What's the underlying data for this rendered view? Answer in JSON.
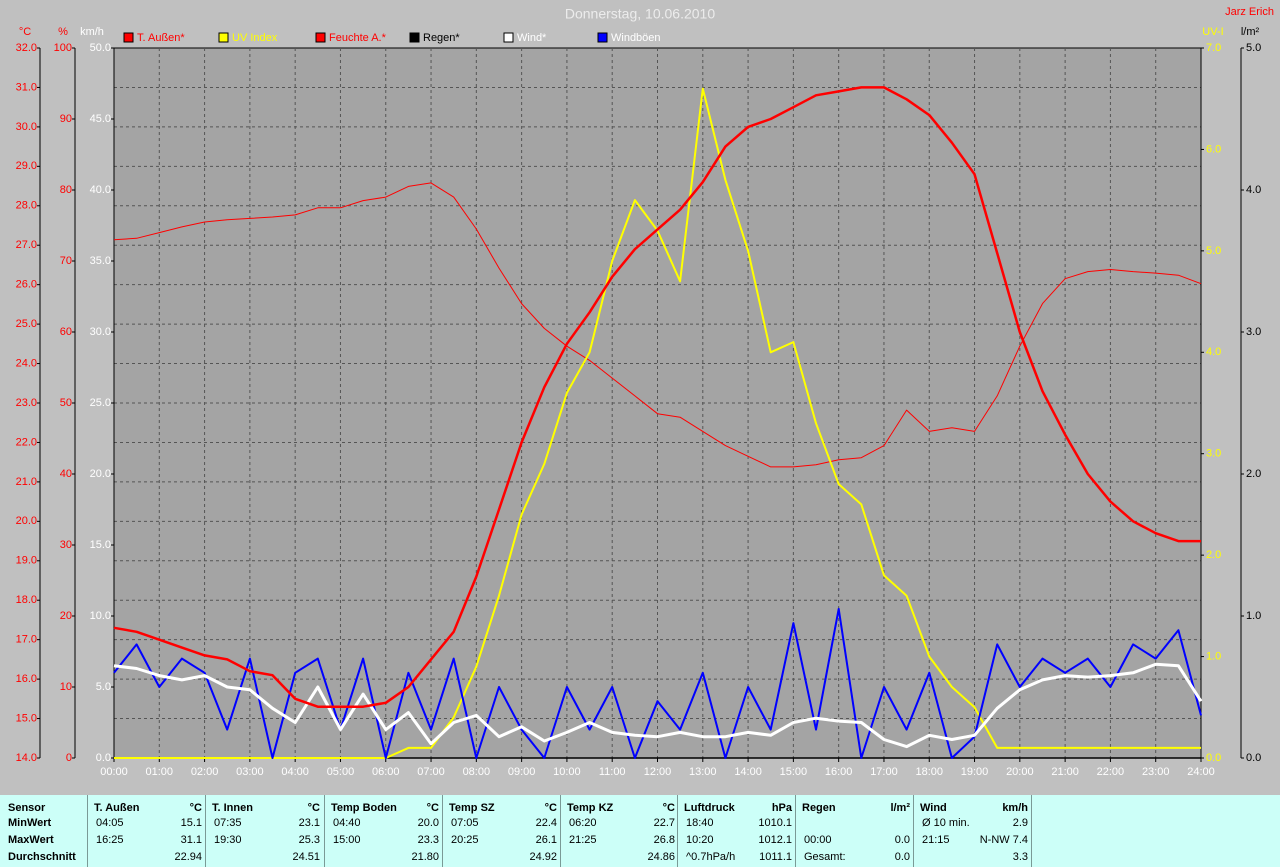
{
  "chart_data": {
    "type": "line",
    "title": "Donnerstag, 10.06.2010",
    "author": "Jarz Erich",
    "xlim": [
      0,
      24
    ],
    "xticks": [
      {
        "value": 0,
        "label": "00:00"
      },
      {
        "value": 1,
        "label": "01:00"
      },
      {
        "value": 2,
        "label": "02:00"
      },
      {
        "value": 3,
        "label": "03:00"
      },
      {
        "value": 4,
        "label": "04:00"
      },
      {
        "value": 5,
        "label": "05:00"
      },
      {
        "value": 6,
        "label": "06:00"
      },
      {
        "value": 7,
        "label": "07:00"
      },
      {
        "value": 8,
        "label": "08:00"
      },
      {
        "value": 9,
        "label": "09:00"
      },
      {
        "value": 10,
        "label": "10:00"
      },
      {
        "value": 11,
        "label": "11:00"
      },
      {
        "value": 12,
        "label": "12:00"
      },
      {
        "value": 13,
        "label": "13:00"
      },
      {
        "value": 14,
        "label": "14:00"
      },
      {
        "value": 15,
        "label": "15:00"
      },
      {
        "value": 16,
        "label": "16:00"
      },
      {
        "value": 17,
        "label": "17:00"
      },
      {
        "value": 18,
        "label": "18:00"
      },
      {
        "value": 19,
        "label": "19:00"
      },
      {
        "value": 20,
        "label": "20:00"
      },
      {
        "value": 21,
        "label": "21:00"
      },
      {
        "value": 22,
        "label": "22:00"
      },
      {
        "value": 23,
        "label": "23:00"
      },
      {
        "value": 24,
        "label": "24:00"
      }
    ],
    "grid": true,
    "axes": [
      {
        "unit": "°C",
        "color": "#ff0000",
        "lim": [
          14,
          32
        ],
        "ticks": [
          {
            "value": 14,
            "label": "14.0"
          },
          {
            "value": 15,
            "label": "15.0"
          },
          {
            "value": 16,
            "label": "16.0"
          },
          {
            "value": 17,
            "label": "17.0"
          },
          {
            "value": 18,
            "label": "18.0"
          },
          {
            "value": 19,
            "label": "19.0"
          },
          {
            "value": 20,
            "label": "20.0"
          },
          {
            "value": 21,
            "label": "21.0"
          },
          {
            "value": 22,
            "label": "22.0"
          },
          {
            "value": 23,
            "label": "23.0"
          },
          {
            "value": 24,
            "label": "24.0"
          },
          {
            "value": 25,
            "label": "25.0"
          },
          {
            "value": 26,
            "label": "26.0"
          },
          {
            "value": 27,
            "label": "27.0"
          },
          {
            "value": 28,
            "label": "28.0"
          },
          {
            "value": 29,
            "label": "29.0"
          },
          {
            "value": 30,
            "label": "30.0"
          },
          {
            "value": 31,
            "label": "31.0"
          },
          {
            "value": 32,
            "label": "32.0"
          }
        ]
      },
      {
        "unit": "%",
        "color": "#ff0000",
        "lim": [
          0,
          100
        ],
        "ticks": [
          0,
          10,
          20,
          30,
          40,
          50,
          60,
          70,
          80,
          90,
          100
        ]
      },
      {
        "unit": "km/h",
        "color": "#ffffff",
        "lim": [
          0,
          50
        ],
        "ticks": [
          {
            "value": 0,
            "label": "0.0"
          },
          {
            "value": 5,
            "label": "5.0"
          },
          {
            "value": 10,
            "label": "10.0"
          },
          {
            "value": 15,
            "label": "15.0"
          },
          {
            "value": 20,
            "label": "20.0"
          },
          {
            "value": 25,
            "label": "25.0"
          },
          {
            "value": 30,
            "label": "30.0"
          },
          {
            "value": 35,
            "label": "35.0"
          },
          {
            "value": 40,
            "label": "40.0"
          },
          {
            "value": 45,
            "label": "45.0"
          },
          {
            "value": 50,
            "label": "50.0"
          }
        ]
      },
      {
        "unit": "UV-I",
        "color": "#ffff00",
        "lim": [
          0,
          7
        ],
        "ticks": [
          {
            "value": 0,
            "label": "0.0"
          },
          {
            "value": 1,
            "label": "1.0"
          },
          {
            "value": 2,
            "label": "2.0"
          },
          {
            "value": 3,
            "label": "3.0"
          },
          {
            "value": 4,
            "label": "4.0"
          },
          {
            "value": 5,
            "label": "5.0"
          },
          {
            "value": 6,
            "label": "6.0"
          },
          {
            "value": 7,
            "label": "7.0"
          }
        ]
      },
      {
        "unit": "l/m²",
        "color": "#000000",
        "lim": [
          0,
          5
        ],
        "ticks": [
          {
            "value": 0,
            "label": "0.0"
          },
          {
            "value": 1,
            "label": "1.0"
          },
          {
            "value": 2,
            "label": "2.0"
          },
          {
            "value": 3,
            "label": "3.0"
          },
          {
            "value": 4,
            "label": "4.0"
          },
          {
            "value": 5,
            "label": "5.0"
          }
        ]
      }
    ],
    "x": [
      0,
      0.5,
      1,
      1.5,
      2,
      2.5,
      3,
      3.5,
      4,
      4.5,
      5,
      5.5,
      6,
      6.5,
      7,
      7.5,
      8,
      8.5,
      9,
      9.5,
      10,
      10.5,
      11,
      11.5,
      12,
      12.5,
      13,
      13.5,
      14,
      14.5,
      15,
      15.5,
      16,
      16.5,
      17,
      17.5,
      18,
      18.5,
      19,
      19.5,
      20,
      20.5,
      21,
      21.5,
      22,
      22.5,
      23,
      23.5,
      24
    ],
    "series": [
      {
        "name": "T. Außen*",
        "color": "#ff0000",
        "axis": 0,
        "values": [
          17.3,
          17.2,
          17.0,
          16.8,
          16.6,
          16.5,
          16.2,
          16.1,
          15.5,
          15.3,
          15.3,
          15.3,
          15.4,
          15.8,
          16.5,
          17.2,
          18.6,
          20.3,
          22.0,
          23.4,
          24.5,
          25.3,
          26.2,
          26.9,
          27.4,
          27.9,
          28.6,
          29.5,
          30.0,
          30.2,
          30.5,
          30.8,
          30.9,
          31.0,
          31.0,
          30.7,
          30.3,
          29.6,
          28.8,
          26.8,
          24.8,
          23.3,
          22.2,
          21.2,
          20.5,
          20.0,
          19.7,
          19.5,
          19.5
        ]
      },
      {
        "name": "UV Index",
        "color": "#ffff00",
        "axis": 3,
        "values": [
          0,
          0,
          0,
          0,
          0,
          0,
          0,
          0,
          0,
          0,
          0,
          0,
          0,
          0.1,
          0.1,
          0.4,
          0.9,
          1.6,
          2.4,
          2.9,
          3.6,
          4.0,
          4.9,
          5.5,
          5.2,
          4.7,
          6.6,
          5.7,
          5.0,
          4.0,
          4.1,
          3.3,
          2.7,
          2.5,
          1.8,
          1.6,
          1.0,
          0.7,
          0.5,
          0.1,
          0.1,
          0.1,
          0.1,
          0.1,
          0.1,
          0.1,
          0.1,
          0.1,
          0.1
        ]
      },
      {
        "name": "Feuchte A.*",
        "color": "#ff0000",
        "axis": 1,
        "values": [
          73,
          73.2,
          74,
          74.8,
          75.5,
          75.8,
          76,
          76.2,
          76.5,
          77.5,
          77.5,
          78.5,
          79,
          80.5,
          81,
          79,
          74.5,
          69,
          64,
          60.5,
          58,
          56,
          53.5,
          51,
          48.5,
          48,
          46,
          44,
          42.5,
          41,
          41,
          41.3,
          42,
          42.3,
          44,
          49,
          46,
          46.5,
          46,
          51,
          58,
          64,
          67.5,
          68.5,
          68.8,
          68.5,
          68.3,
          68,
          66.8
        ]
      },
      {
        "name": "Regen*",
        "color": "#000000",
        "axis": 4,
        "values": [
          0,
          0,
          0,
          0,
          0,
          0,
          0,
          0,
          0,
          0,
          0,
          0,
          0,
          0,
          0,
          0,
          0,
          0,
          0,
          0,
          0,
          0,
          0,
          0,
          0,
          0,
          0,
          0,
          0,
          0,
          0,
          0,
          0,
          0,
          0,
          0,
          0,
          0,
          0,
          0,
          0,
          0,
          0,
          0,
          0,
          0,
          0,
          0,
          0
        ]
      },
      {
        "name": "Wind*",
        "color": "#ffffff",
        "axis": 2,
        "values": [
          6.5,
          6.3,
          5.8,
          5.5,
          5.8,
          5.0,
          4.8,
          3.5,
          2.5,
          5.0,
          2.0,
          4.5,
          2.0,
          3.2,
          1.0,
          2.5,
          3.0,
          1.5,
          2.2,
          1.2,
          1.8,
          2.5,
          1.8,
          1.6,
          1.5,
          1.8,
          1.5,
          1.5,
          1.8,
          1.6,
          2.5,
          2.8,
          2.6,
          2.5,
          1.3,
          0.8,
          1.6,
          1.3,
          1.6,
          3.5,
          4.8,
          5.5,
          5.8,
          5.7,
          5.8,
          6.0,
          6.6,
          6.5,
          4.0
        ]
      },
      {
        "name": "Windböen",
        "color": "#0000ff",
        "axis": 2,
        "values": [
          6,
          8,
          5,
          7,
          6,
          2,
          7,
          0,
          6,
          7,
          2,
          7,
          0,
          6,
          2,
          7,
          0,
          5,
          2,
          0,
          5,
          2,
          5,
          0,
          4,
          2,
          6,
          0,
          5,
          2,
          9.5,
          2,
          10.5,
          0,
          5,
          2,
          6,
          0,
          1.5,
          8,
          5,
          7,
          6,
          7,
          5,
          8,
          7,
          9,
          3
        ]
      }
    ]
  },
  "table": {
    "row_labels": [
      "Sensor",
      "MinWert",
      "MaxWert",
      "Durchschnitt"
    ],
    "groups": [
      {
        "name": "T. Außen",
        "unit": "°C",
        "cells": [
          [
            "04:05",
            "15.1"
          ],
          [
            "16:25",
            "31.1"
          ],
          [
            "22.94"
          ]
        ]
      },
      {
        "name": "T. Innen",
        "unit": "°C",
        "cells": [
          [
            "07:35",
            "23.1"
          ],
          [
            "19:30",
            "25.3"
          ],
          [
            "24.51"
          ]
        ]
      },
      {
        "name": "Temp Boden",
        "unit": "°C",
        "cells": [
          [
            "04:40",
            "20.0"
          ],
          [
            "15:00",
            "23.3"
          ],
          [
            "21.80"
          ]
        ]
      },
      {
        "name": "Temp SZ",
        "unit": "°C",
        "cells": [
          [
            "07:05",
            "22.4"
          ],
          [
            "20:25",
            "26.1"
          ],
          [
            "24.92"
          ]
        ]
      },
      {
        "name": "Temp KZ",
        "unit": "°C",
        "cells": [
          [
            "06:20",
            "22.7"
          ],
          [
            "21:25",
            "26.8"
          ],
          [
            "24.86"
          ]
        ]
      },
      {
        "name": "Luftdruck",
        "unit": "hPa",
        "cells": [
          [
            "18:40",
            "1010.1"
          ],
          [
            "10:20",
            "1012.1"
          ],
          [
            "^0.7hPa/h",
            "1011.1"
          ]
        ]
      },
      {
        "name": "Regen",
        "unit": "l/m²",
        "cells": [
          [],
          [
            "00:00",
            "0.0"
          ],
          [
            "Gesamt:",
            "0.0"
          ]
        ]
      },
      {
        "name": "Wind",
        "unit": "km/h",
        "cells": [
          [
            "Ø 10 min.",
            "2.9"
          ],
          [
            "21:15",
            "N-NW 7.4"
          ],
          [
            "3.3"
          ]
        ]
      }
    ]
  }
}
